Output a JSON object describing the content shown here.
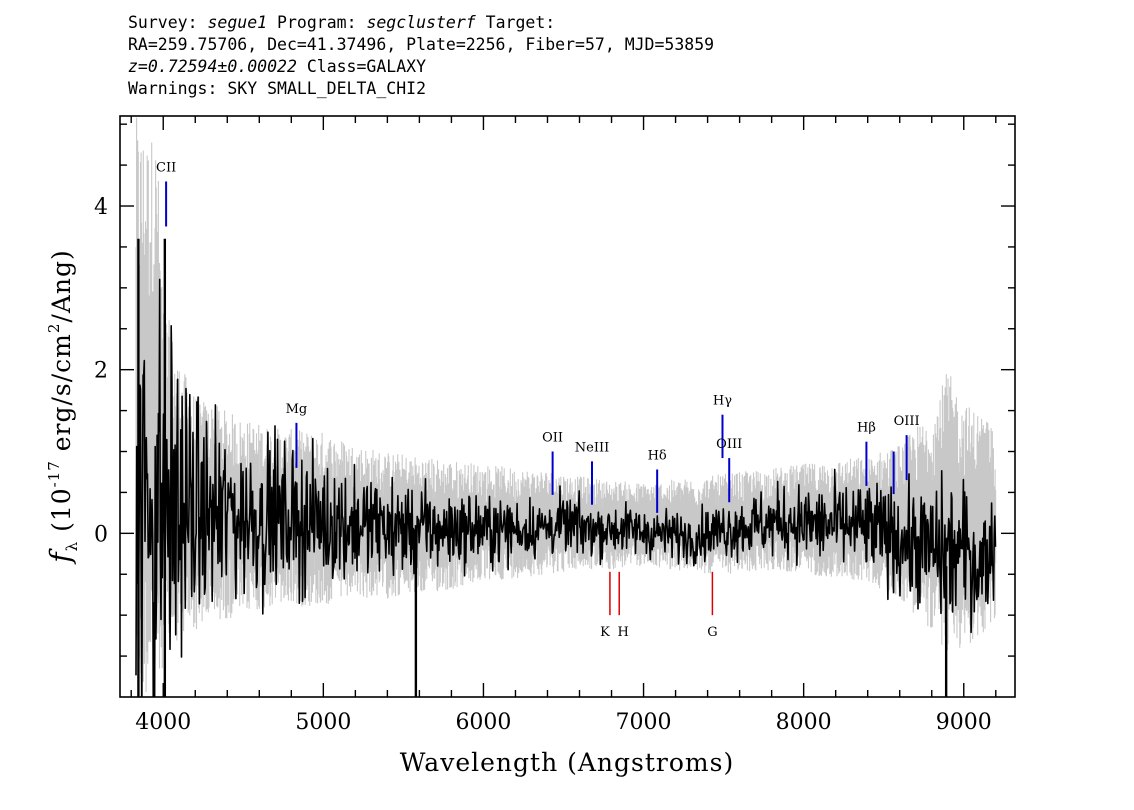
{
  "header": {
    "l1_a": "Survey: ",
    "l1_b": "segue1",
    "l1_c": " Program: ",
    "l1_d": "segclusterf",
    "l1_e": " Target:",
    "l2": "RA=259.75706, Dec=41.37496, Plate=2256, Fiber=57, MJD=53859",
    "l3_a": "z=0.72594±0.00022",
    "l3_b": " Class=GALAXY",
    "l4": "Warnings: SKY SMALL_DELTA_CHI2"
  },
  "chart_data": {
    "type": "line",
    "title": "",
    "xlabel": "Wavelength (Angstroms)",
    "ylabel": "f_λ (10^-17 erg/s/cm^2/Ang)",
    "ylabel_parts": {
      "f": "f",
      "sub": "λ",
      "pre": " (10",
      "exp1": "-17",
      "mid": " erg/s/cm",
      "exp2": "2",
      "post": "/Ang)"
    },
    "xlim": [
      3730,
      9320
    ],
    "ylim": [
      -2.0,
      5.1
    ],
    "xticks": [
      4000,
      5000,
      6000,
      7000,
      8000,
      9000
    ],
    "xtick_labels": [
      "4000",
      "5000",
      "6000",
      "7000",
      "8000",
      "9000"
    ],
    "yticks": [
      0,
      2,
      4
    ],
    "ytick_labels": [
      "0",
      "2",
      "4"
    ],
    "x_minor_step": 200,
    "y_minor_step": 0.5,
    "grid": false,
    "series": [
      {
        "role": "error",
        "color": "#c8c8c8",
        "x": [
          3830,
          3900,
          3960,
          4000,
          4100,
          4200,
          4300,
          4500,
          4700,
          4900,
          5000,
          5200,
          5400,
          5600,
          5800,
          6000,
          6200,
          6400,
          6600,
          6800,
          7000,
          7200,
          7400,
          7600,
          7800,
          8000,
          8200,
          8400,
          8600,
          8800,
          8900,
          9000,
          9100,
          9200
        ],
        "lo": [
          -2.0,
          -2.0,
          -2.0,
          -1.6,
          -1.3,
          -1.2,
          -1.1,
          -1.0,
          -0.9,
          -0.9,
          -0.9,
          -0.8,
          -0.8,
          -0.75,
          -0.7,
          -0.6,
          -0.55,
          -0.5,
          -0.45,
          -0.45,
          -0.4,
          -0.45,
          -0.5,
          -0.5,
          -0.45,
          -0.5,
          -0.55,
          -0.6,
          -0.8,
          -1.2,
          -1.5,
          -1.4,
          -1.3,
          -1.1
        ],
        "hi": [
          5.1,
          4.9,
          4.9,
          2.9,
          2.1,
          1.7,
          1.6,
          1.4,
          1.3,
          1.25,
          1.25,
          1.1,
          1.0,
          0.95,
          0.9,
          0.85,
          0.8,
          0.78,
          0.7,
          0.65,
          0.62,
          0.66,
          0.7,
          0.75,
          0.8,
          0.85,
          0.9,
          0.95,
          1.1,
          1.5,
          2.0,
          1.6,
          1.5,
          1.3
        ]
      },
      {
        "role": "flux",
        "color": "#000000",
        "x": [
          3830,
          3900,
          3960,
          4000,
          4100,
          4200,
          4300,
          4500,
          4700,
          4900,
          5100,
          5300,
          5500,
          5700,
          5900,
          6100,
          6300,
          6500,
          6700,
          6900,
          7100,
          7300,
          7500,
          7700,
          7900,
          8100,
          8300,
          8500,
          8700,
          8900,
          9000,
          9100,
          9200
        ],
        "y": [
          0.3,
          0.4,
          0.35,
          0.3,
          0.3,
          0.25,
          0.25,
          0.2,
          0.2,
          0.15,
          0.12,
          0.1,
          0.05,
          0.05,
          0.05,
          0.05,
          0.05,
          0.1,
          0.05,
          0.05,
          0.0,
          -0.05,
          0.05,
          0.1,
          0.15,
          0.1,
          0.1,
          0.0,
          -0.15,
          -0.25,
          -0.2,
          -0.4,
          -0.1
        ],
        "noise": [
          1.5,
          1.5,
          1.5,
          1.1,
          0.85,
          0.65,
          0.55,
          0.5,
          0.45,
          0.4,
          0.35,
          0.3,
          0.28,
          0.25,
          0.22,
          0.2,
          0.18,
          0.18,
          0.16,
          0.15,
          0.15,
          0.15,
          0.17,
          0.2,
          0.22,
          0.24,
          0.27,
          0.3,
          0.35,
          0.45,
          0.4,
          0.35,
          0.3
        ]
      }
    ],
    "spikes": [
      {
        "x": 5578,
        "y_lo": -2.0,
        "y_hi": 0.1
      },
      {
        "x": 3845,
        "y_lo": -2.0,
        "y_hi": 3.6
      },
      {
        "x": 4010,
        "y_lo": -2.0,
        "y_hi": 3.6
      },
      {
        "x": 8890,
        "y_lo": -2.0,
        "y_hi": -0.4
      }
    ],
    "emission_lines": [
      {
        "label": "CII",
        "x": 4018,
        "y1": 3.75,
        "y2": 4.3
      },
      {
        "label": "Mg",
        "x": 4832,
        "y1": 0.8,
        "y2": 1.35
      },
      {
        "label": "OII",
        "x": 6432,
        "y1": 0.47,
        "y2": 1.0
      },
      {
        "label": "NeIII",
        "x": 6678,
        "y1": 0.35,
        "y2": 0.88
      },
      {
        "label": "Hδ",
        "x": 7085,
        "y1": 0.25,
        "y2": 0.78
      },
      {
        "label": "Hγ",
        "x": 7493,
        "y1": 0.92,
        "y2": 1.45
      },
      {
        "label": "OIII",
        "x": 7535,
        "y1": 0.38,
        "y2": 0.92
      },
      {
        "label": "Hβ",
        "x": 8392,
        "y1": 0.58,
        "y2": 1.12
      },
      {
        "label": "",
        "x": 8562,
        "y1": 0.48,
        "y2": 1.0
      },
      {
        "label": "OIII",
        "x": 8643,
        "y1": 0.65,
        "y2": 1.2
      }
    ],
    "absorption_lines": [
      {
        "label": "K",
        "x": 6790,
        "y1": -1.0,
        "y2": -0.47
      },
      {
        "label": "H",
        "x": 6848,
        "y1": -1.0,
        "y2": -0.47
      },
      {
        "label": "G",
        "x": 7430,
        "y1": -1.0,
        "y2": -0.47
      }
    ],
    "colors": {
      "emission": "#0000cc",
      "absorption": "#dd0000",
      "error": "#c8c8c8",
      "flux": "#000000"
    }
  }
}
